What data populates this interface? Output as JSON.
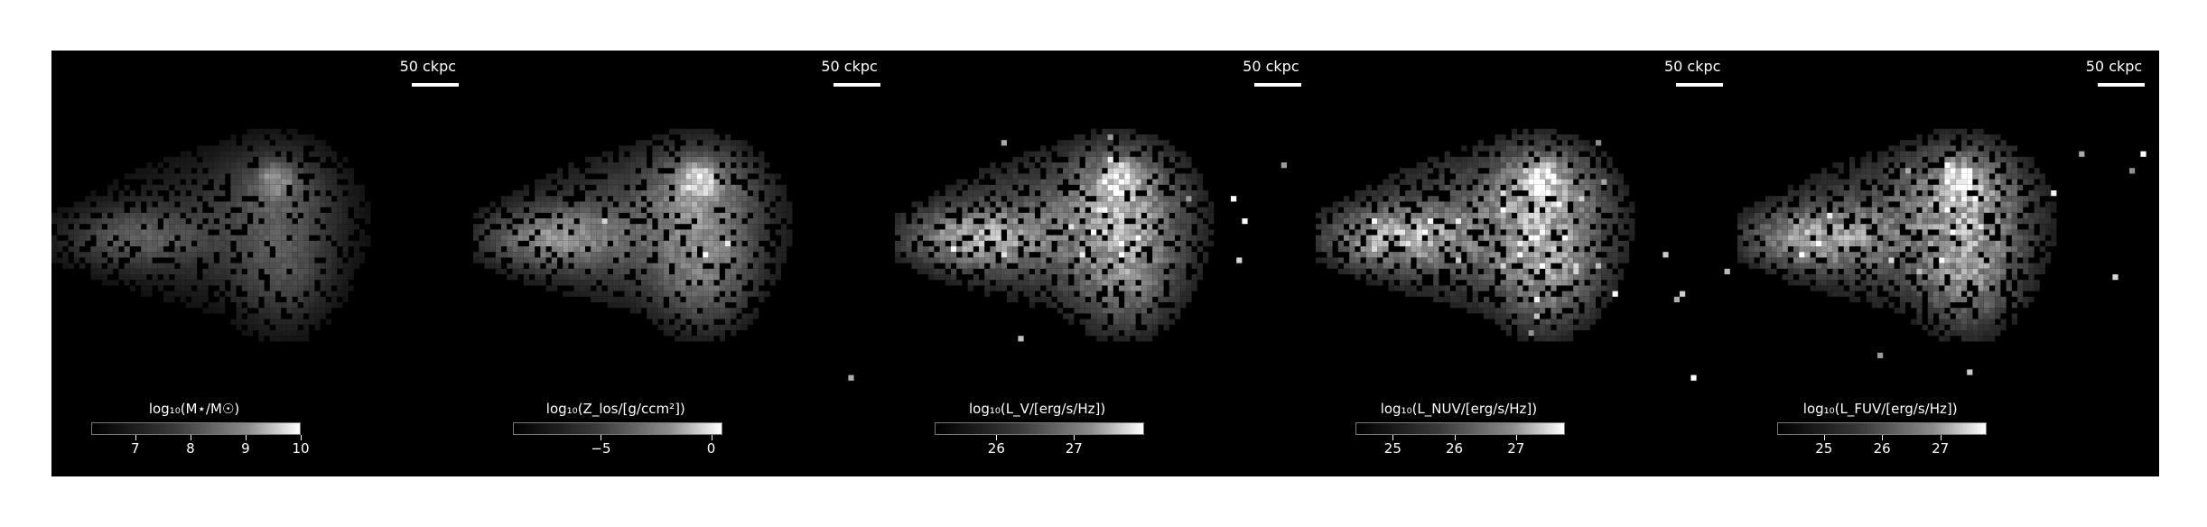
{
  "chart_data": [
    {
      "type": "heatmap",
      "scale_bar_label": "50 ckpc",
      "colorbar_label": "log₁₀(M⋆/M☉)",
      "colorbar_range": [
        6.2,
        10.0
      ],
      "colorbar_ticks": [
        {
          "value": 7,
          "label": "7"
        },
        {
          "value": 8,
          "label": "8"
        },
        {
          "value": 9,
          "label": "9"
        },
        {
          "value": 10,
          "label": "10"
        }
      ],
      "colormap": "greys_r",
      "background": "#000000"
    },
    {
      "type": "heatmap",
      "scale_bar_label": "50 ckpc",
      "colorbar_label": "log₁₀(Z_los/[g/ccm²])",
      "colorbar_range": [
        -9.0,
        0.5
      ],
      "colorbar_ticks": [
        {
          "value": -5,
          "label": "−5"
        },
        {
          "value": 0,
          "label": "0"
        }
      ],
      "colormap": "greys_r",
      "background": "#000000"
    },
    {
      "type": "heatmap",
      "scale_bar_label": "50 ckpc",
      "colorbar_label": "log₁₀(L_V/[erg/s/Hz])",
      "colorbar_range": [
        25.2,
        27.9
      ],
      "colorbar_ticks": [
        {
          "value": 26,
          "label": "26"
        },
        {
          "value": 27,
          "label": "27"
        }
      ],
      "colormap": "greys_r",
      "background": "#000000"
    },
    {
      "type": "heatmap",
      "scale_bar_label": "50 ckpc",
      "colorbar_label": "log₁₀(L_NUV/[erg/s/Hz])",
      "colorbar_range": [
        24.4,
        27.8
      ],
      "colorbar_ticks": [
        {
          "value": 25,
          "label": "25"
        },
        {
          "value": 26,
          "label": "26"
        },
        {
          "value": 27,
          "label": "27"
        }
      ],
      "colormap": "greys_r",
      "background": "#000000"
    },
    {
      "type": "heatmap",
      "scale_bar_label": "50 ckpc",
      "colorbar_label": "log₁₀(L_FUV/[erg/s/Hz])",
      "colorbar_range": [
        24.2,
        27.8
      ],
      "colorbar_ticks": [
        {
          "value": 25,
          "label": "25"
        },
        {
          "value": 26,
          "label": "26"
        },
        {
          "value": 27,
          "label": "27"
        }
      ],
      "colormap": "greys_r",
      "background": "#000000"
    }
  ]
}
